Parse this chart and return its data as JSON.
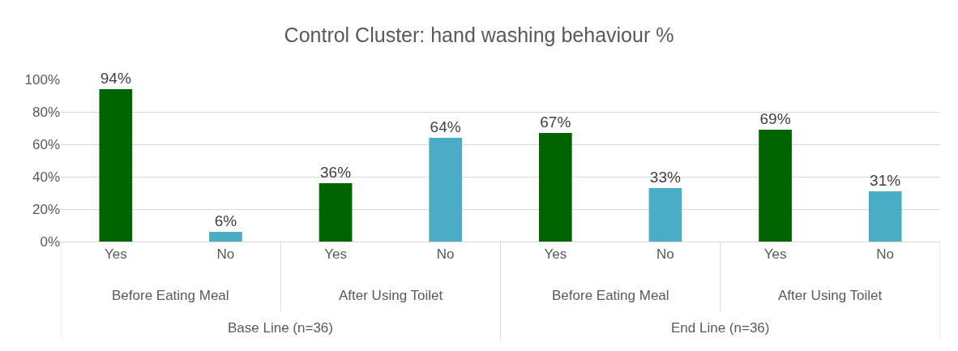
{
  "chart_data": {
    "type": "bar",
    "title": "Control Cluster: hand washing behaviour %",
    "categories": [
      "Yes",
      "No",
      "Yes",
      "No",
      "Yes",
      "No",
      "Yes",
      "No"
    ],
    "values": [
      94,
      6,
      36,
      64,
      67,
      33,
      69,
      31
    ],
    "colors": [
      "#006400",
      "#4bacc6",
      "#006400",
      "#4bacc6",
      "#006400",
      "#4bacc6",
      "#006400",
      "#4bacc6"
    ],
    "value_labels": [
      "94%",
      "6%",
      "36%",
      "64%",
      "67%",
      "33%",
      "69%",
      "31%"
    ],
    "ylim": [
      0,
      100
    ],
    "yticks": [
      {
        "value": 0,
        "label": "0%"
      },
      {
        "value": 20,
        "label": "20%"
      },
      {
        "value": 40,
        "label": "40%"
      },
      {
        "value": 60,
        "label": "60%"
      },
      {
        "value": 80,
        "label": "80%"
      },
      {
        "value": 100,
        "label": "100%"
      }
    ],
    "grid": "y",
    "annotations": [
      "Before Eating Meal",
      "After Using Toilet",
      "Before Eating Meal",
      "After Using Toilet",
      "Base Line (n=36)",
      "End Line (n=36)"
    ]
  }
}
